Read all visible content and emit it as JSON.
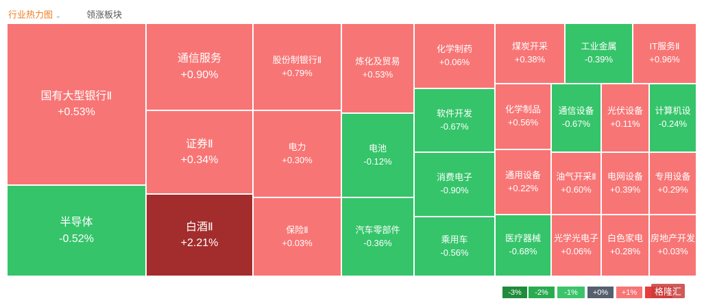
{
  "tabs": [
    "行业热力图",
    "领涨板块"
  ],
  "tiles": [
    {
      "name": "国有大型银行Ⅱ",
      "change": "+0.53%",
      "color": "#f87575"
    },
    {
      "name": "半导体",
      "change": "-0.52%",
      "color": "#35c46a"
    },
    {
      "name": "通信服务",
      "change": "+0.90%",
      "color": "#f87575"
    },
    {
      "name": "证券Ⅱ",
      "change": "+0.34%",
      "color": "#f87575"
    },
    {
      "name": "白酒Ⅱ",
      "change": "+2.21%",
      "color": "#a32c2c"
    },
    {
      "name": "股份制银行Ⅱ",
      "change": "+0.79%",
      "color": "#f87575"
    },
    {
      "name": "电力",
      "change": "+0.30%",
      "color": "#f87575"
    },
    {
      "name": "保险Ⅱ",
      "change": "+0.03%",
      "color": "#f87575"
    },
    {
      "name": "炼化及贸易",
      "change": "+0.53%",
      "color": "#f87575"
    },
    {
      "name": "电池",
      "change": "-0.12%",
      "color": "#35c46a"
    },
    {
      "name": "汽车零部件",
      "change": "-0.36%",
      "color": "#35c46a"
    },
    {
      "name": "化学制药",
      "change": "+0.06%",
      "color": "#f87575"
    },
    {
      "name": "软件开发",
      "change": "-0.67%",
      "color": "#35c46a"
    },
    {
      "name": "消费电子",
      "change": "-0.90%",
      "color": "#35c46a"
    },
    {
      "name": "乘用车",
      "change": "-0.56%",
      "color": "#35c46a"
    },
    {
      "name": "煤炭开采",
      "change": "+0.38%",
      "color": "#f87575"
    },
    {
      "name": "工业金属",
      "change": "-0.39%",
      "color": "#35c46a"
    },
    {
      "name": "IT服务Ⅱ",
      "change": "+0.96%",
      "color": "#f87575"
    },
    {
      "name": "化学制品",
      "change": "+0.56%",
      "color": "#f87575"
    },
    {
      "name": "通信设备",
      "change": "-0.67%",
      "color": "#35c46a"
    },
    {
      "name": "光伏设备",
      "change": "+0.11%",
      "color": "#f87575"
    },
    {
      "name": "计算机设",
      "change": "-0.24%",
      "color": "#35c46a"
    },
    {
      "name": "通用设备",
      "change": "+0.22%",
      "color": "#f87575"
    },
    {
      "name": "油气开采Ⅱ",
      "change": "+0.60%",
      "color": "#f87575"
    },
    {
      "name": "电网设备",
      "change": "+0.39%",
      "color": "#f87575"
    },
    {
      "name": "专用设备",
      "change": "+0.29%",
      "color": "#f87575"
    },
    {
      "name": "医疗器械",
      "change": "-0.68%",
      "color": "#35c46a"
    },
    {
      "name": "光学光电子",
      "change": "+0.06%",
      "color": "#f87575"
    },
    {
      "name": "白色家电",
      "change": "+0.28%",
      "color": "#f87575"
    },
    {
      "name": "房地产开发",
      "change": "+0.03%",
      "color": "#f87575"
    }
  ],
  "legend": [
    {
      "label": "-3%",
      "color": "#1f8b3b"
    },
    {
      "label": "-2%",
      "color": "#2aab52"
    },
    {
      "label": "-1%",
      "color": "#3cc46a"
    },
    {
      "label": "+0%",
      "color": "#555f6e"
    },
    {
      "label": "+1%",
      "color": "#f87575"
    },
    {
      "label": "+",
      "color": "#e83c3c"
    }
  ],
  "watermark": "格隆汇"
}
